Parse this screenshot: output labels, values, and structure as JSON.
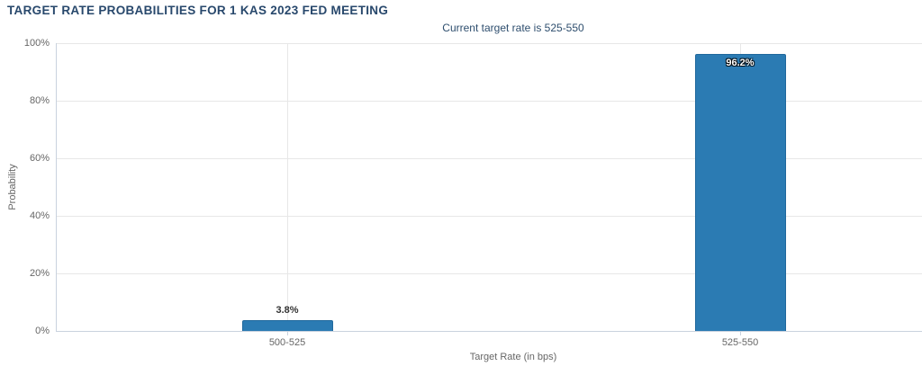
{
  "chart_data": {
    "type": "bar",
    "title": "TARGET RATE PROBABILITIES FOR 1 KAS 2023 FED MEETING",
    "subtitle": "Current target rate is 525-550",
    "categories": [
      "500-525",
      "525-550"
    ],
    "values": [
      3.8,
      96.2
    ],
    "value_labels": [
      "3.8%",
      "96.2%"
    ],
    "xlabel": "Target Rate (in bps)",
    "ylabel": "Probability",
    "ylim": [
      0,
      100
    ],
    "yticks": [
      0,
      20,
      40,
      60,
      80,
      100
    ],
    "ytick_labels": [
      "0%",
      "20%",
      "40%",
      "60%",
      "80%",
      "100%"
    ],
    "grid": true,
    "legend": "none",
    "bar_color": "#2b7bb3"
  },
  "colors": {
    "title_text": "#28486c",
    "subtitle_text": "#2e4e6e",
    "bar_fill": "#2b7bb3",
    "bar_border": "#20689c",
    "grid_line": "#e7e7e7",
    "axis_line": "#c9d2de",
    "tick_text": "#666666",
    "data_label_dark": "#333333",
    "data_label_light": "#ffffff"
  }
}
